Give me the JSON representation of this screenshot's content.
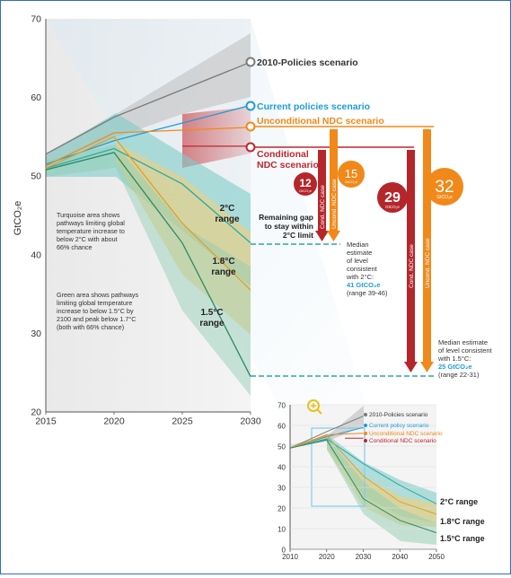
{
  "chart_data": [
    {
      "type": "line",
      "ylabel": "GtCO₂e",
      "x_ticks": [
        "2015",
        "2020",
        "2025",
        "2030"
      ],
      "y_ticks": [
        "20",
        "30",
        "40",
        "50",
        "60",
        "70"
      ],
      "xlim": [
        2015,
        2030
      ],
      "ylim": [
        20,
        70
      ],
      "series": [
        {
          "name": "2010-Policies scenario",
          "color": "#7a7a7a",
          "x": [
            2015,
            2020,
            2030
          ],
          "y": [
            52.8,
            57.5,
            64.5
          ]
        },
        {
          "name": "Current policies scenario",
          "color": "#1f9bd7",
          "x": [
            2015,
            2020,
            2030
          ],
          "y": [
            51.5,
            54.5,
            59.0
          ]
        },
        {
          "name": "Unconditional NDC scenario",
          "color": "#f0891a",
          "x": [
            2015,
            2020,
            2030
          ],
          "y": [
            51.3,
            55.5,
            56.2
          ]
        },
        {
          "name": "Conditional NDC scenario",
          "color": "#c0272d",
          "x": [
            2025,
            2030
          ],
          "y": [
            53.8,
            53.8
          ]
        },
        {
          "name": "2°C range",
          "color": "#2aa8a4",
          "x": [
            2015,
            2020,
            2025,
            2030
          ],
          "y": [
            51.0,
            53.5,
            49.0,
            41.5
          ]
        },
        {
          "name": "1.8°C range",
          "color": "#e19f27",
          "x": [
            2015,
            2020,
            2025,
            2030
          ],
          "y": [
            51.0,
            55.0,
            44.0,
            35.5
          ]
        },
        {
          "name": "1.5°C range",
          "color": "#2b8a63",
          "x": [
            2015,
            2020,
            2025,
            2030
          ],
          "y": [
            50.8,
            53.0,
            41.5,
            24.5
          ]
        }
      ],
      "annotations": {
        "line_labels": {
          "policies2010": "2010-Policies scenario",
          "current": "Current policies scenario",
          "uncond": "Unconditional NDC scenario",
          "cond_line1": "Conditional",
          "cond_line2": "NDC scenario"
        },
        "range_labels": {
          "r2_line1": "2°C",
          "r2_line2": "range",
          "r18_line1": "1.8°C",
          "r18_line2": "range",
          "r15_line1": "1.5°C",
          "r15_line2": "range"
        },
        "turquoise_note": [
          "Turquoise area shows",
          "pathways limiting global",
          "temperature increase to",
          "below 2°C with about",
          "66% chance"
        ],
        "green_note": [
          "Green area shows pathways",
          "limiting global temperature",
          "increase to below 1.5°C by",
          "2100 and peak below 1.7°C",
          "(both with 66% chance)"
        ],
        "gap_label": [
          "Remaining gap",
          "to stay within",
          "2°C limit"
        ],
        "median2": {
          "lines": [
            "Median",
            "estimate",
            "of level",
            "consistent",
            "with 2°C:"
          ],
          "value": "41 GtCO₂e",
          "range": "(range 39-46)"
        },
        "median15": {
          "lines": [
            "Median estimate",
            "of level consistent",
            "with 1.5°C:"
          ],
          "value": "25 GtCO₂e",
          "range": "(range 22-31)"
        },
        "gap_bars": [
          {
            "label": "Cond. NDC case",
            "value": "12",
            "unit": "GtCO₂e",
            "color": "#b5262b"
          },
          {
            "label": "Uncond. NDC case",
            "value": "15",
            "unit": "GtCO₂e",
            "color": "#f0891a"
          },
          {
            "label": "Cond. NDC case",
            "value": "29",
            "unit": "GtCO₂e",
            "color": "#b5262b"
          },
          {
            "label": "Uncond. NDC case",
            "value": "32",
            "unit": "GtCO₂e",
            "color": "#f0891a"
          }
        ]
      }
    },
    {
      "type": "line",
      "x_ticks": [
        "2010",
        "2020",
        "2030",
        "2040",
        "2050"
      ],
      "y_ticks": [
        "0",
        "10",
        "20",
        "30",
        "40",
        "50",
        "60",
        "70"
      ],
      "xlim": [
        2010,
        2050
      ],
      "ylim": [
        0,
        70
      ],
      "legend": [
        "2010-Policies scenario",
        "Current policy scenario",
        "Unconditional NDC scenario",
        "Conditional NDC scenario"
      ],
      "range_labels": [
        "2°C range",
        "1.8°C range",
        "1.5°C range"
      ],
      "series": [
        {
          "name": "2010-Policies scenario",
          "color": "#7a7a7a",
          "x": [
            2010,
            2020,
            2030
          ],
          "y": [
            49,
            57,
            64.5
          ]
        },
        {
          "name": "Current policy scenario",
          "color": "#1f9bd7",
          "x": [
            2010,
            2020,
            2030
          ],
          "y": [
            49,
            54.5,
            59
          ]
        },
        {
          "name": "Unconditional NDC scenario",
          "color": "#f0891a",
          "x": [
            2010,
            2020,
            2030
          ],
          "y": [
            49,
            55.5,
            56.2
          ]
        },
        {
          "name": "Conditional NDC scenario",
          "color": "#c0272d",
          "x": [
            2025,
            2030
          ],
          "y": [
            53.8,
            53.8
          ]
        },
        {
          "name": "2°C range",
          "color": "#2aa8a4",
          "x": [
            2010,
            2020,
            2030,
            2040,
            2050
          ],
          "y": [
            49,
            53.5,
            41.5,
            31,
            22
          ]
        },
        {
          "name": "1.8°C range",
          "color": "#e19f27",
          "x": [
            2010,
            2020,
            2030,
            2040,
            2050
          ],
          "y": [
            49,
            55,
            35.5,
            23,
            17
          ]
        },
        {
          "name": "1.5°C range",
          "color": "#2b8a63",
          "x": [
            2010,
            2020,
            2030,
            2040,
            2050
          ],
          "y": [
            49,
            53,
            24.5,
            14,
            8
          ]
        }
      ]
    }
  ]
}
